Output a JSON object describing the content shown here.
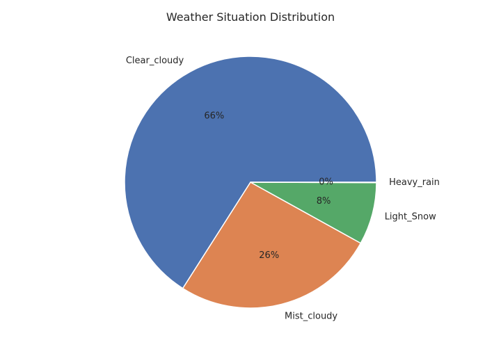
{
  "chart_data": {
    "type": "pie",
    "title": "Weather Situation Distribution",
    "categories": [
      "Clear_cloudy",
      "Mist_cloudy",
      "Light_Snow",
      "Heavy_rain"
    ],
    "values": [
      66,
      26,
      8,
      0.05
    ],
    "value_labels": [
      "66%",
      "26%",
      "8%",
      "0%"
    ],
    "colors": [
      "#4c72b0",
      "#dd8452",
      "#55a868",
      "#c44e52"
    ],
    "start_angle_deg": 0,
    "direction": "counterclockwise",
    "wedge_edge_color": "#ffffff",
    "legend": "none"
  }
}
